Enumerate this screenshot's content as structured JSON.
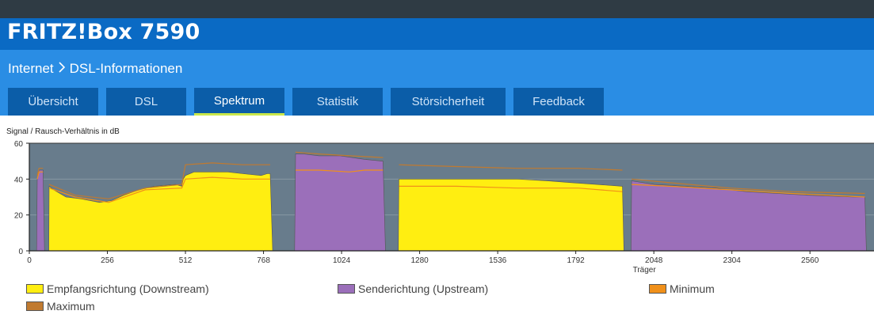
{
  "app": {
    "product_name": "FRITZ!Box 7590"
  },
  "breadcrumb": {
    "section": "Internet",
    "page": "DSL-Informationen",
    "separator_icon": "chevron-right-icon"
  },
  "tabs": [
    {
      "label": "Übersicht",
      "active": false
    },
    {
      "label": "DSL",
      "active": false
    },
    {
      "label": "Spektrum",
      "active": true
    },
    {
      "label": "Statistik",
      "active": false
    },
    {
      "label": "Störsicherheit",
      "active": false
    },
    {
      "label": "Feedback",
      "active": false
    }
  ],
  "colors": {
    "downstream": "#ffee11",
    "upstream": "#9b6fba",
    "minimum": "#f0901a",
    "maximum": "#c07a30",
    "plot_bg": "#687c8c",
    "active_tab_underline": "#c9e84b"
  },
  "chart_data": {
    "type": "area",
    "ylabel": "Signal / Rausch-Verhältnis in dB",
    "xlabel": "Träger",
    "ylim": [
      0,
      60
    ],
    "xlim": [
      0,
      2770
    ],
    "x_ticks": [
      0,
      256,
      512,
      768,
      1024,
      1280,
      1536,
      1792,
      2048,
      2304,
      2560
    ],
    "y_ticks": [
      0,
      20,
      40,
      60
    ],
    "grid": true,
    "legend": "bottom",
    "series": [
      {
        "name": "Empfangsrichtung (Downstream)",
        "color_key": "downstream",
        "points": [
          [
            64,
            0
          ],
          [
            65,
            36
          ],
          [
            80,
            34
          ],
          [
            120,
            30
          ],
          [
            170,
            29
          ],
          [
            230,
            27
          ],
          [
            270,
            28
          ],
          [
            310,
            31
          ],
          [
            360,
            34
          ],
          [
            410,
            36
          ],
          [
            480,
            37
          ],
          [
            500,
            36
          ],
          [
            505,
            40
          ],
          [
            512,
            42
          ],
          [
            540,
            44
          ],
          [
            600,
            44
          ],
          [
            650,
            44
          ],
          [
            700,
            43
          ],
          [
            760,
            42
          ],
          [
            780,
            43
          ],
          [
            790,
            43
          ],
          [
            798,
            0
          ]
        ]
      },
      {
        "name": "Senderichtung (Upstream)",
        "color_key": "upstream",
        "points": [
          [
            24,
            0
          ],
          [
            26,
            40
          ],
          [
            32,
            45
          ],
          [
            45,
            45
          ],
          [
            50,
            0
          ]
        ]
      },
      {
        "name": "Senderichtung (Upstream)",
        "color_key": "upstream",
        "points": [
          [
            870,
            0
          ],
          [
            873,
            54
          ],
          [
            900,
            54
          ],
          [
            950,
            53
          ],
          [
            1020,
            53
          ],
          [
            1100,
            51
          ],
          [
            1160,
            50
          ],
          [
            1168,
            0
          ]
        ]
      },
      {
        "name": "Empfangsrichtung (Downstream)",
        "color_key": "downstream",
        "points": [
          [
            1210,
            0
          ],
          [
            1212,
            40
          ],
          [
            1260,
            40
          ],
          [
            1300,
            40
          ],
          [
            1400,
            40
          ],
          [
            1500,
            40
          ],
          [
            1600,
            40
          ],
          [
            1700,
            39
          ],
          [
            1780,
            38
          ],
          [
            1860,
            37
          ],
          [
            1945,
            36
          ],
          [
            1950,
            0
          ]
        ]
      },
      {
        "name": "Senderichtung (Upstream)",
        "color_key": "upstream",
        "points": [
          [
            1973,
            0
          ],
          [
            1975,
            39
          ],
          [
            2050,
            37
          ],
          [
            2150,
            36
          ],
          [
            2250,
            35
          ],
          [
            2350,
            33
          ],
          [
            2450,
            32
          ],
          [
            2550,
            31
          ],
          [
            2700,
            30
          ],
          [
            2740,
            30
          ],
          [
            2745,
            0
          ]
        ]
      }
    ],
    "minimum": [
      [
        [
          26,
          40
        ],
        [
          32,
          44
        ],
        [
          45,
          44
        ]
      ],
      [
        [
          65,
          35
        ],
        [
          150,
          30
        ],
        [
          260,
          27
        ],
        [
          380,
          34
        ],
        [
          500,
          35
        ],
        [
          512,
          40
        ],
        [
          600,
          41
        ],
        [
          700,
          40
        ],
        [
          790,
          40
        ]
      ],
      [
        [
          873,
          45
        ],
        [
          950,
          45
        ],
        [
          1050,
          44
        ],
        [
          1100,
          45
        ],
        [
          1160,
          45
        ]
      ],
      [
        [
          1212,
          36
        ],
        [
          1400,
          36
        ],
        [
          1600,
          35
        ],
        [
          1800,
          35
        ],
        [
          1945,
          33
        ]
      ],
      [
        [
          1975,
          37
        ],
        [
          2100,
          36
        ],
        [
          2300,
          34
        ],
        [
          2500,
          32
        ],
        [
          2740,
          30
        ]
      ]
    ],
    "maximum": [
      [
        [
          26,
          42
        ],
        [
          32,
          46
        ],
        [
          45,
          46
        ]
      ],
      [
        [
          65,
          37
        ],
        [
          150,
          31
        ],
        [
          260,
          29
        ],
        [
          380,
          35
        ],
        [
          500,
          37
        ],
        [
          512,
          48
        ],
        [
          600,
          49
        ],
        [
          700,
          48
        ],
        [
          790,
          48
        ]
      ],
      [
        [
          873,
          55
        ],
        [
          950,
          54
        ],
        [
          1050,
          53
        ],
        [
          1160,
          52
        ]
      ],
      [
        [
          1212,
          48
        ],
        [
          1400,
          47
        ],
        [
          1600,
          46
        ],
        [
          1800,
          46
        ],
        [
          1945,
          45
        ]
      ],
      [
        [
          1975,
          40
        ],
        [
          2100,
          38
        ],
        [
          2300,
          35
        ],
        [
          2500,
          33
        ],
        [
          2740,
          32
        ]
      ]
    ]
  },
  "legend": {
    "downstream": "Empfangsrichtung (Downstream)",
    "upstream": "Senderichtung (Upstream)",
    "minimum": "Minimum",
    "maximum": "Maximum"
  }
}
